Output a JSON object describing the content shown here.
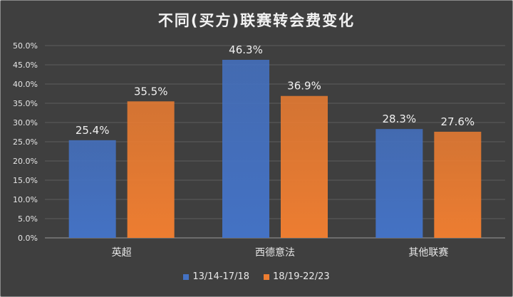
{
  "chart_data": {
    "type": "bar",
    "title": "不同(买方)联赛转会费变化",
    "categories": [
      "英超",
      "西德意法",
      "其他联赛"
    ],
    "series": [
      {
        "name": "13/14-17/18",
        "values": [
          25.4,
          46.3,
          28.3
        ],
        "labels": [
          "25.4%",
          "46.3%",
          "28.3%"
        ],
        "color": "#4472c4"
      },
      {
        "name": "18/19-22/23",
        "values": [
          35.5,
          36.9,
          27.6
        ],
        "labels": [
          "35.5%",
          "36.9%",
          "27.6%"
        ],
        "color": "#ed7d31"
      }
    ],
    "ylim": [
      0,
      50
    ],
    "yticks": [
      "0.0%",
      "5.0%",
      "10.0%",
      "15.0%",
      "20.0%",
      "25.0%",
      "30.0%",
      "35.0%",
      "40.0%",
      "45.0%",
      "50.0%"
    ],
    "grid": true,
    "legend_position": "bottom",
    "background": "#3f3f3f"
  }
}
